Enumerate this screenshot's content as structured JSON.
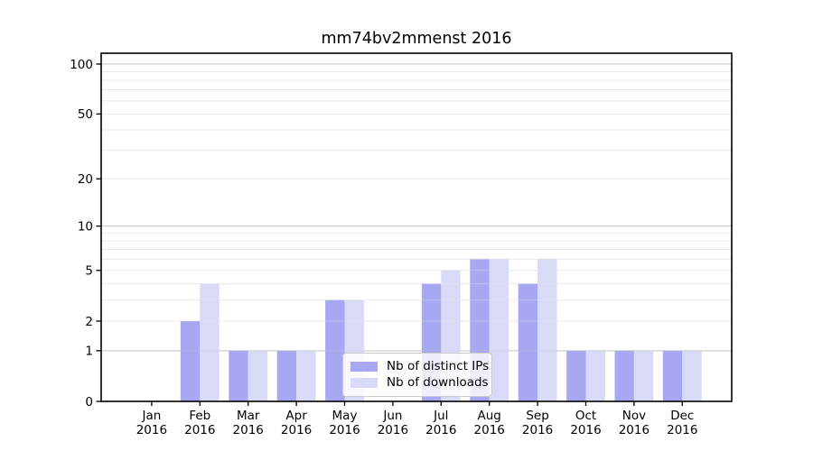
{
  "chart_data": {
    "type": "bar",
    "title": "mm74bv2mmenst 2016",
    "categories": [
      "Jan",
      "Feb",
      "Mar",
      "Apr",
      "May",
      "Jun",
      "Jul",
      "Aug",
      "Sep",
      "Oct",
      "Nov",
      "Dec"
    ],
    "x_year": "2016",
    "series": [
      {
        "name": "Nb of distinct IPs",
        "color": "#a8a8f2",
        "values": [
          0,
          2,
          1,
          1,
          3,
          0,
          4,
          6,
          4,
          1,
          1,
          1
        ]
      },
      {
        "name": "Nb of downloads",
        "color": "#d9d9f8",
        "values": [
          0,
          4,
          1,
          1,
          3,
          0,
          5,
          6,
          6,
          1,
          1,
          1
        ]
      }
    ],
    "y_axis": {
      "scale": "log1p",
      "tick_labels": [
        "100",
        "50",
        "20",
        "10",
        "5",
        "2",
        "1",
        "0"
      ],
      "tick_values": [
        100,
        50,
        20,
        10,
        5,
        2,
        1,
        0
      ],
      "major_grid_values": [
        1,
        10,
        100
      ],
      "minor_grid_values": [
        2,
        3,
        4,
        5,
        6,
        7,
        8,
        9,
        20,
        30,
        40,
        50,
        60,
        70,
        80,
        90
      ],
      "ylim": [
        0,
        116
      ]
    },
    "legend_position": "lower center",
    "grid": true,
    "colors": {
      "major_grid": "#c5c5c5",
      "minor_grid": "#eaeaea",
      "axis": "#000000",
      "background": "#ffffff"
    }
  }
}
